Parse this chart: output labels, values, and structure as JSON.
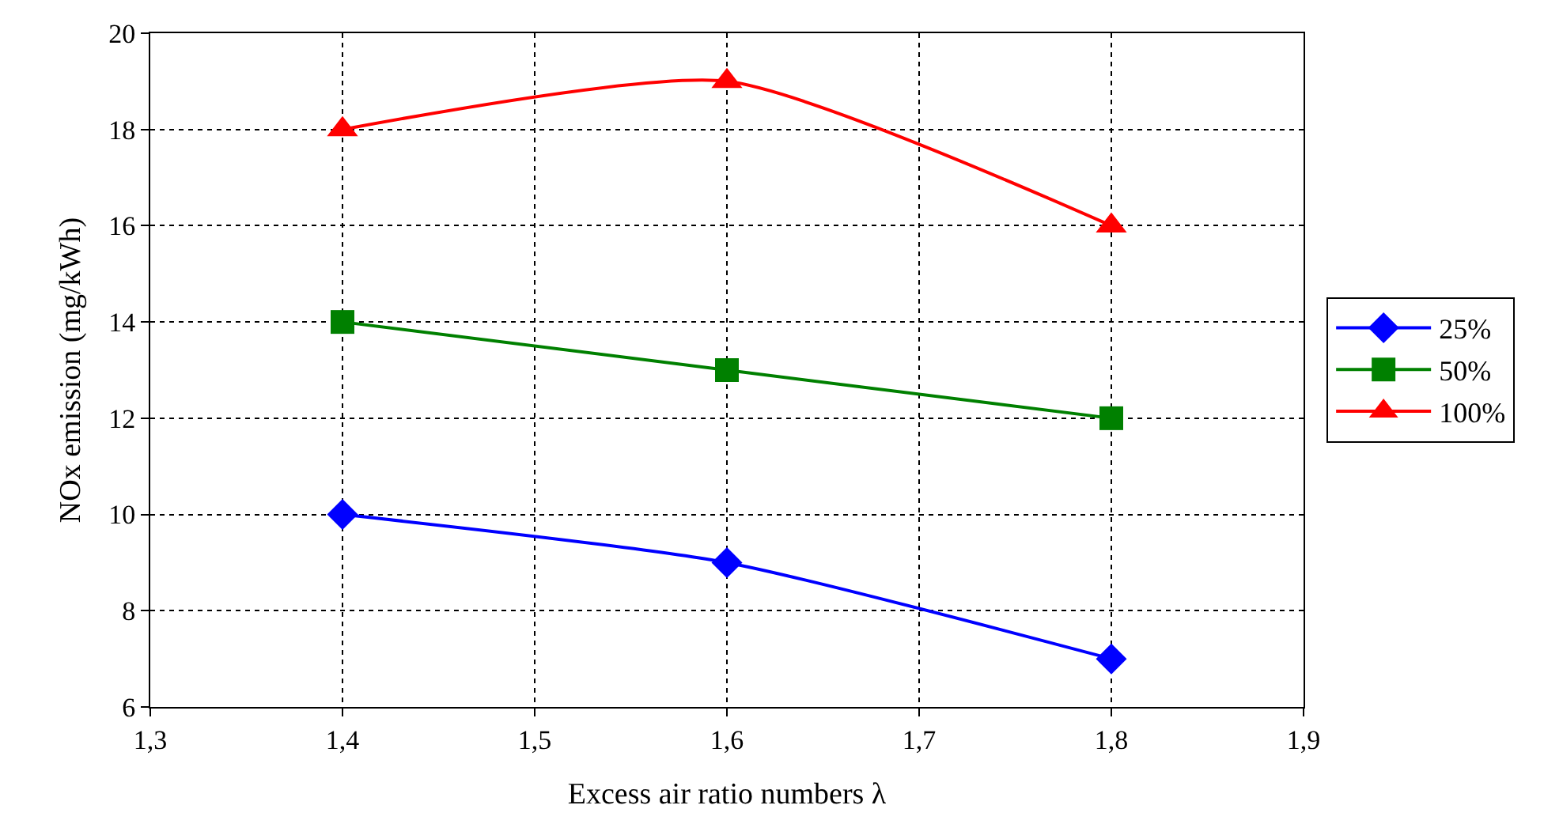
{
  "chart_data": {
    "type": "line",
    "xlabel": "Excess air ratio numbers λ",
    "ylabel": "NOx emission (mg/kWh)",
    "x": [
      1.4,
      1.6,
      1.8
    ],
    "series": [
      {
        "name": "25%",
        "color": "#0000ff",
        "marker": "diamond",
        "values": [
          10,
          9,
          7
        ]
      },
      {
        "name": "50%",
        "color": "#008000",
        "marker": "square",
        "values": [
          14,
          13,
          12
        ]
      },
      {
        "name": "100%",
        "color": "#ff0000",
        "marker": "triangle",
        "values": [
          18,
          19,
          16
        ]
      }
    ],
    "xlim": [
      1.3,
      1.9
    ],
    "xticks": [
      {
        "value": 1.3,
        "label": "1,3"
      },
      {
        "value": 1.4,
        "label": "1,4"
      },
      {
        "value": 1.5,
        "label": "1,5"
      },
      {
        "value": 1.6,
        "label": "1,6"
      },
      {
        "value": 1.7,
        "label": "1,7"
      },
      {
        "value": 1.8,
        "label": "1,8"
      },
      {
        "value": 1.9,
        "label": "1,9"
      }
    ],
    "ylim": [
      6,
      20
    ],
    "yticks": [
      6,
      8,
      10,
      12,
      14,
      16,
      18,
      20
    ],
    "grid": true,
    "legend": "right",
    "line_style": "solid"
  }
}
